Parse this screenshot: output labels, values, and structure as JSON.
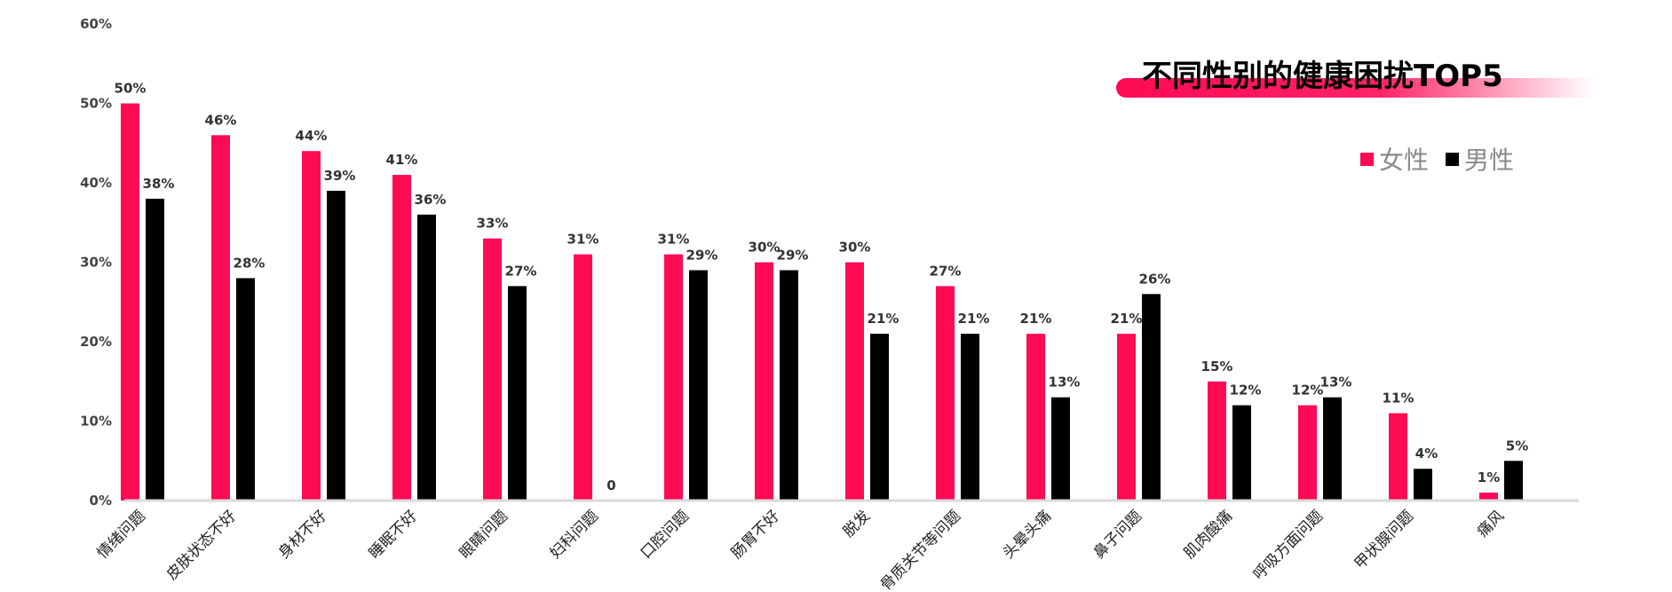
{
  "chart_data": {
    "type": "bar",
    "title": "不同性别的健康困扰TOP5",
    "xlabel": "",
    "ylabel": "",
    "ylim": [
      0,
      60
    ],
    "yticks": [
      "0%",
      "10%",
      "20%",
      "30%",
      "40%",
      "50%",
      "60%"
    ],
    "grid": false,
    "legend": "top-right",
    "categories": [
      "情绪问题",
      "皮肤状态不好",
      "身材不好",
      "睡眠不好",
      "眼睛问题",
      "妇科问题",
      "口腔问题",
      "肠胃不好",
      "脱发",
      "骨质关节等问题",
      "头晕头痛",
      "鼻子问题",
      "肌肉酸痛",
      "呼吸方面问题",
      "甲状腺问题",
      "痛风"
    ],
    "series": [
      {
        "name": "女性",
        "color": "#ff0a54",
        "values": [
          50,
          46,
          44,
          41,
          33,
          31,
          31,
          30,
          30,
          27,
          21,
          21,
          15,
          12,
          11,
          1
        ],
        "labels": [
          "50%",
          "46%",
          "44%",
          "41%",
          "33%",
          "31%",
          "31%",
          "30%",
          "30%",
          "27%",
          "21%",
          "21%",
          "15%",
          "12%",
          "11%",
          "1%"
        ]
      },
      {
        "name": "男性",
        "color": "#000000",
        "values": [
          38,
          28,
          39,
          36,
          27,
          0,
          29,
          29,
          21,
          21,
          13,
          26,
          12,
          13,
          4,
          5
        ],
        "labels": [
          "38%",
          "28%",
          "39%",
          "36%",
          "27%",
          "0",
          "29%",
          "29%",
          "21%",
          "21%",
          "13%",
          "26%",
          "12%",
          "13%",
          "4%",
          "5%"
        ]
      }
    ]
  }
}
